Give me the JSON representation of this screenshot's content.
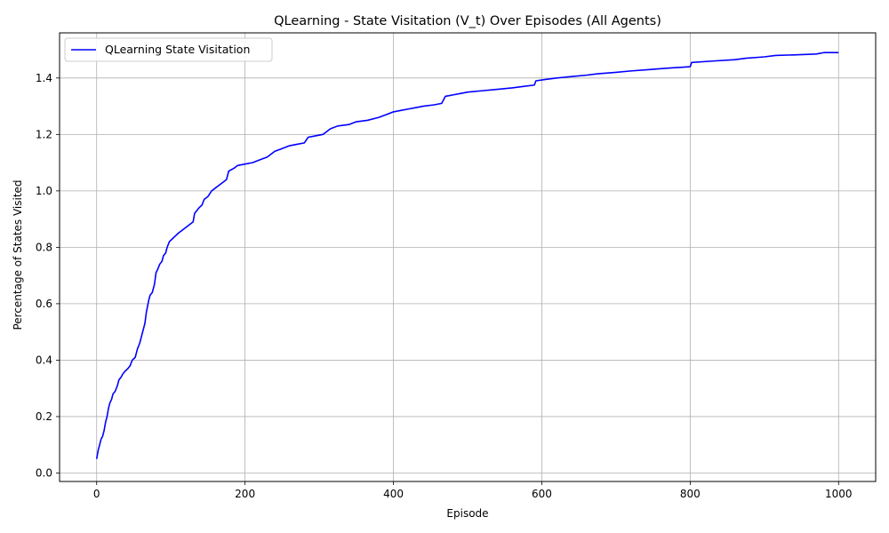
{
  "chart_data": {
    "type": "line",
    "title": "QLearning - State Visitation (V_t) Over Episodes (All Agents)",
    "xlabel": "Episode",
    "ylabel": "Percentage of States Visited",
    "xlim": [
      -50,
      1050
    ],
    "ylim": [
      -0.03,
      1.56
    ],
    "xticks": [
      0,
      200,
      400,
      600,
      800,
      1000
    ],
    "yticks": [
      0.0,
      0.2,
      0.4,
      0.6,
      0.8,
      1.0,
      1.2,
      1.4
    ],
    "xtick_labels": [
      "0",
      "200",
      "400",
      "600",
      "800",
      "1000"
    ],
    "ytick_labels": [
      "0.0",
      "0.2",
      "0.4",
      "0.6",
      "0.8",
      "1.0",
      "1.2",
      "1.4"
    ],
    "grid": true,
    "legend_position": "top-left",
    "series": [
      {
        "name": "QLearning State Visitation",
        "color": "#0000ff",
        "points": [
          [
            0,
            0.05
          ],
          [
            2,
            0.08
          ],
          [
            4,
            0.1
          ],
          [
            6,
            0.12
          ],
          [
            8,
            0.13
          ],
          [
            10,
            0.15
          ],
          [
            12,
            0.18
          ],
          [
            14,
            0.2
          ],
          [
            16,
            0.23
          ],
          [
            18,
            0.25
          ],
          [
            20,
            0.26
          ],
          [
            22,
            0.28
          ],
          [
            25,
            0.29
          ],
          [
            28,
            0.31
          ],
          [
            30,
            0.33
          ],
          [
            33,
            0.34
          ],
          [
            35,
            0.35
          ],
          [
            38,
            0.36
          ],
          [
            42,
            0.37
          ],
          [
            45,
            0.38
          ],
          [
            48,
            0.4
          ],
          [
            52,
            0.41
          ],
          [
            55,
            0.44
          ],
          [
            58,
            0.46
          ],
          [
            60,
            0.48
          ],
          [
            63,
            0.51
          ],
          [
            65,
            0.53
          ],
          [
            67,
            0.57
          ],
          [
            70,
            0.61
          ],
          [
            72,
            0.63
          ],
          [
            75,
            0.64
          ],
          [
            78,
            0.67
          ],
          [
            80,
            0.71
          ],
          [
            82,
            0.72
          ],
          [
            85,
            0.74
          ],
          [
            88,
            0.75
          ],
          [
            90,
            0.77
          ],
          [
            93,
            0.78
          ],
          [
            95,
            0.8
          ],
          [
            98,
            0.82
          ],
          [
            102,
            0.83
          ],
          [
            106,
            0.84
          ],
          [
            110,
            0.85
          ],
          [
            115,
            0.86
          ],
          [
            120,
            0.87
          ],
          [
            125,
            0.88
          ],
          [
            130,
            0.89
          ],
          [
            132,
            0.92
          ],
          [
            135,
            0.93
          ],
          [
            138,
            0.94
          ],
          [
            142,
            0.95
          ],
          [
            145,
            0.97
          ],
          [
            150,
            0.98
          ],
          [
            155,
            1.0
          ],
          [
            160,
            1.01
          ],
          [
            165,
            1.02
          ],
          [
            170,
            1.03
          ],
          [
            175,
            1.04
          ],
          [
            178,
            1.07
          ],
          [
            185,
            1.08
          ],
          [
            190,
            1.09
          ],
          [
            200,
            1.095
          ],
          [
            210,
            1.1
          ],
          [
            220,
            1.11
          ],
          [
            230,
            1.12
          ],
          [
            240,
            1.14
          ],
          [
            250,
            1.15
          ],
          [
            260,
            1.16
          ],
          [
            270,
            1.165
          ],
          [
            280,
            1.17
          ],
          [
            285,
            1.19
          ],
          [
            295,
            1.195
          ],
          [
            305,
            1.2
          ],
          [
            315,
            1.22
          ],
          [
            325,
            1.23
          ],
          [
            340,
            1.235
          ],
          [
            350,
            1.245
          ],
          [
            365,
            1.25
          ],
          [
            380,
            1.26
          ],
          [
            390,
            1.27
          ],
          [
            400,
            1.28
          ],
          [
            410,
            1.285
          ],
          [
            420,
            1.29
          ],
          [
            430,
            1.295
          ],
          [
            440,
            1.3
          ],
          [
            455,
            1.305
          ],
          [
            465,
            1.31
          ],
          [
            470,
            1.335
          ],
          [
            480,
            1.34
          ],
          [
            490,
            1.345
          ],
          [
            500,
            1.35
          ],
          [
            520,
            1.355
          ],
          [
            540,
            1.36
          ],
          [
            560,
            1.365
          ],
          [
            575,
            1.37
          ],
          [
            590,
            1.375
          ],
          [
            592,
            1.39
          ],
          [
            605,
            1.395
          ],
          [
            620,
            1.4
          ],
          [
            640,
            1.405
          ],
          [
            660,
            1.41
          ],
          [
            675,
            1.415
          ],
          [
            700,
            1.42
          ],
          [
            720,
            1.425
          ],
          [
            745,
            1.43
          ],
          [
            770,
            1.435
          ],
          [
            800,
            1.44
          ],
          [
            802,
            1.455
          ],
          [
            830,
            1.46
          ],
          [
            860,
            1.465
          ],
          [
            875,
            1.47
          ],
          [
            900,
            1.475
          ],
          [
            915,
            1.48
          ],
          [
            940,
            1.482
          ],
          [
            970,
            1.485
          ],
          [
            980,
            1.49
          ],
          [
            1000,
            1.49
          ]
        ]
      }
    ]
  }
}
